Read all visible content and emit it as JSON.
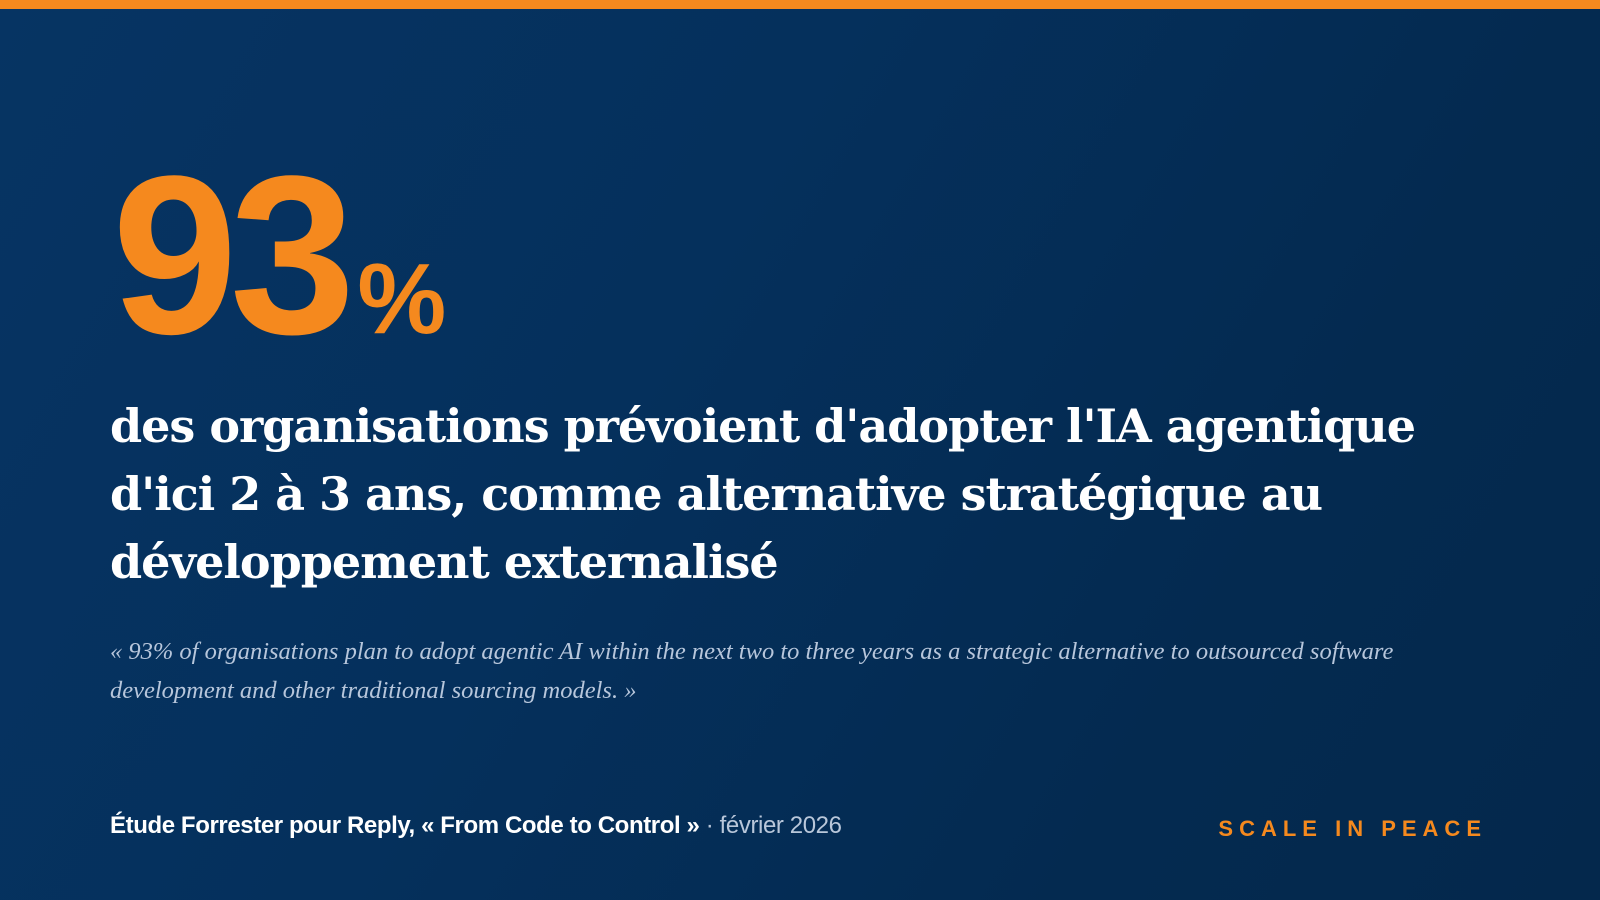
{
  "colors": {
    "accent": "#f5891e",
    "background": "#052f5b",
    "text": "#ffffff",
    "muted_text": "#b7c6db"
  },
  "statistic": {
    "value": "93",
    "unit": "%"
  },
  "headline": "des organisations prévoient d'adopter l'IA agentique d'ici 2 à 3 ans, comme alternative stratégique au développement externalisé",
  "quote": "« 93% of organisations plan to adopt agentic AI within the next two to three years as a strategic alternative to outsourced software development and other traditional sourcing models. »",
  "source": {
    "title": "Étude Forrester pour Reply, « From Code to Control »",
    "date": "· février 2026"
  },
  "brand": "SCALE IN PEACE"
}
